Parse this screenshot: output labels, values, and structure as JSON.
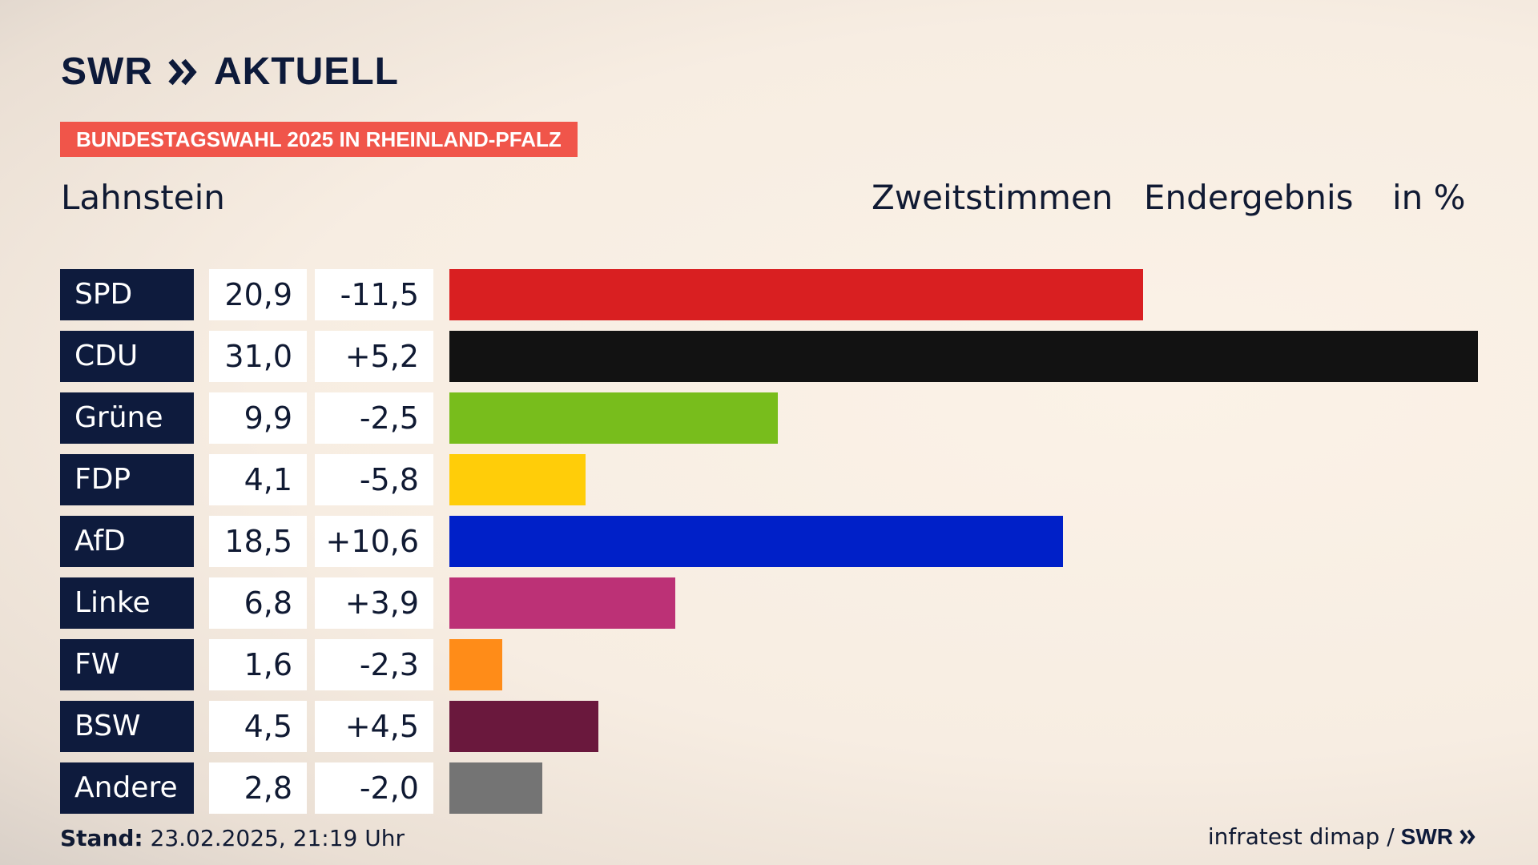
{
  "brand": {
    "logo_main": "SWR",
    "logo_sub": "AKTUELL",
    "navy": "#0d1a3a"
  },
  "banner": {
    "text": "BUNDESTAGSWAHL 2025 IN RHEINLAND-PFALZ",
    "color": "#f0554a"
  },
  "place": "Lahnstein",
  "header": {
    "vote_type": "Zweitstimmen",
    "status": "Endergebnis",
    "unit": "in %"
  },
  "chart_data": {
    "type": "bar",
    "orientation": "horizontal",
    "categories": [
      "SPD",
      "CDU",
      "Grüne",
      "FDP",
      "AfD",
      "Linke",
      "FW",
      "BSW",
      "Andere"
    ],
    "values": [
      20.9,
      31.0,
      9.9,
      4.1,
      18.5,
      6.8,
      1.6,
      4.5,
      2.8
    ],
    "values_label": [
      "20,9",
      "31,0",
      "9,9",
      "4,1",
      "18,5",
      "6,8",
      "1,6",
      "4,5",
      "2,8"
    ],
    "diffs": [
      -11.5,
      5.2,
      -2.5,
      -5.8,
      10.6,
      3.9,
      -2.3,
      4.5,
      -2.0
    ],
    "diffs_label": [
      "-11,5",
      "+5,2",
      "-2,5",
      "-5,8",
      "+10,6",
      "+3,9",
      "-2,3",
      "+4,5",
      "-2,0"
    ],
    "colors": [
      "#d91f21",
      "#121212",
      "#78bd1c",
      "#ffcd09",
      "#0020c8",
      "#bc3176",
      "#ff8c18",
      "#6a183d",
      "#747474"
    ],
    "xlim": [
      0,
      31.0
    ],
    "grid": false,
    "legend": "none"
  },
  "footer": {
    "stand_label": "Stand:",
    "stand_value": "23.02.2025, 21:19 Uhr",
    "source_text": "infratest dimap /",
    "source_logo": "SWR"
  }
}
